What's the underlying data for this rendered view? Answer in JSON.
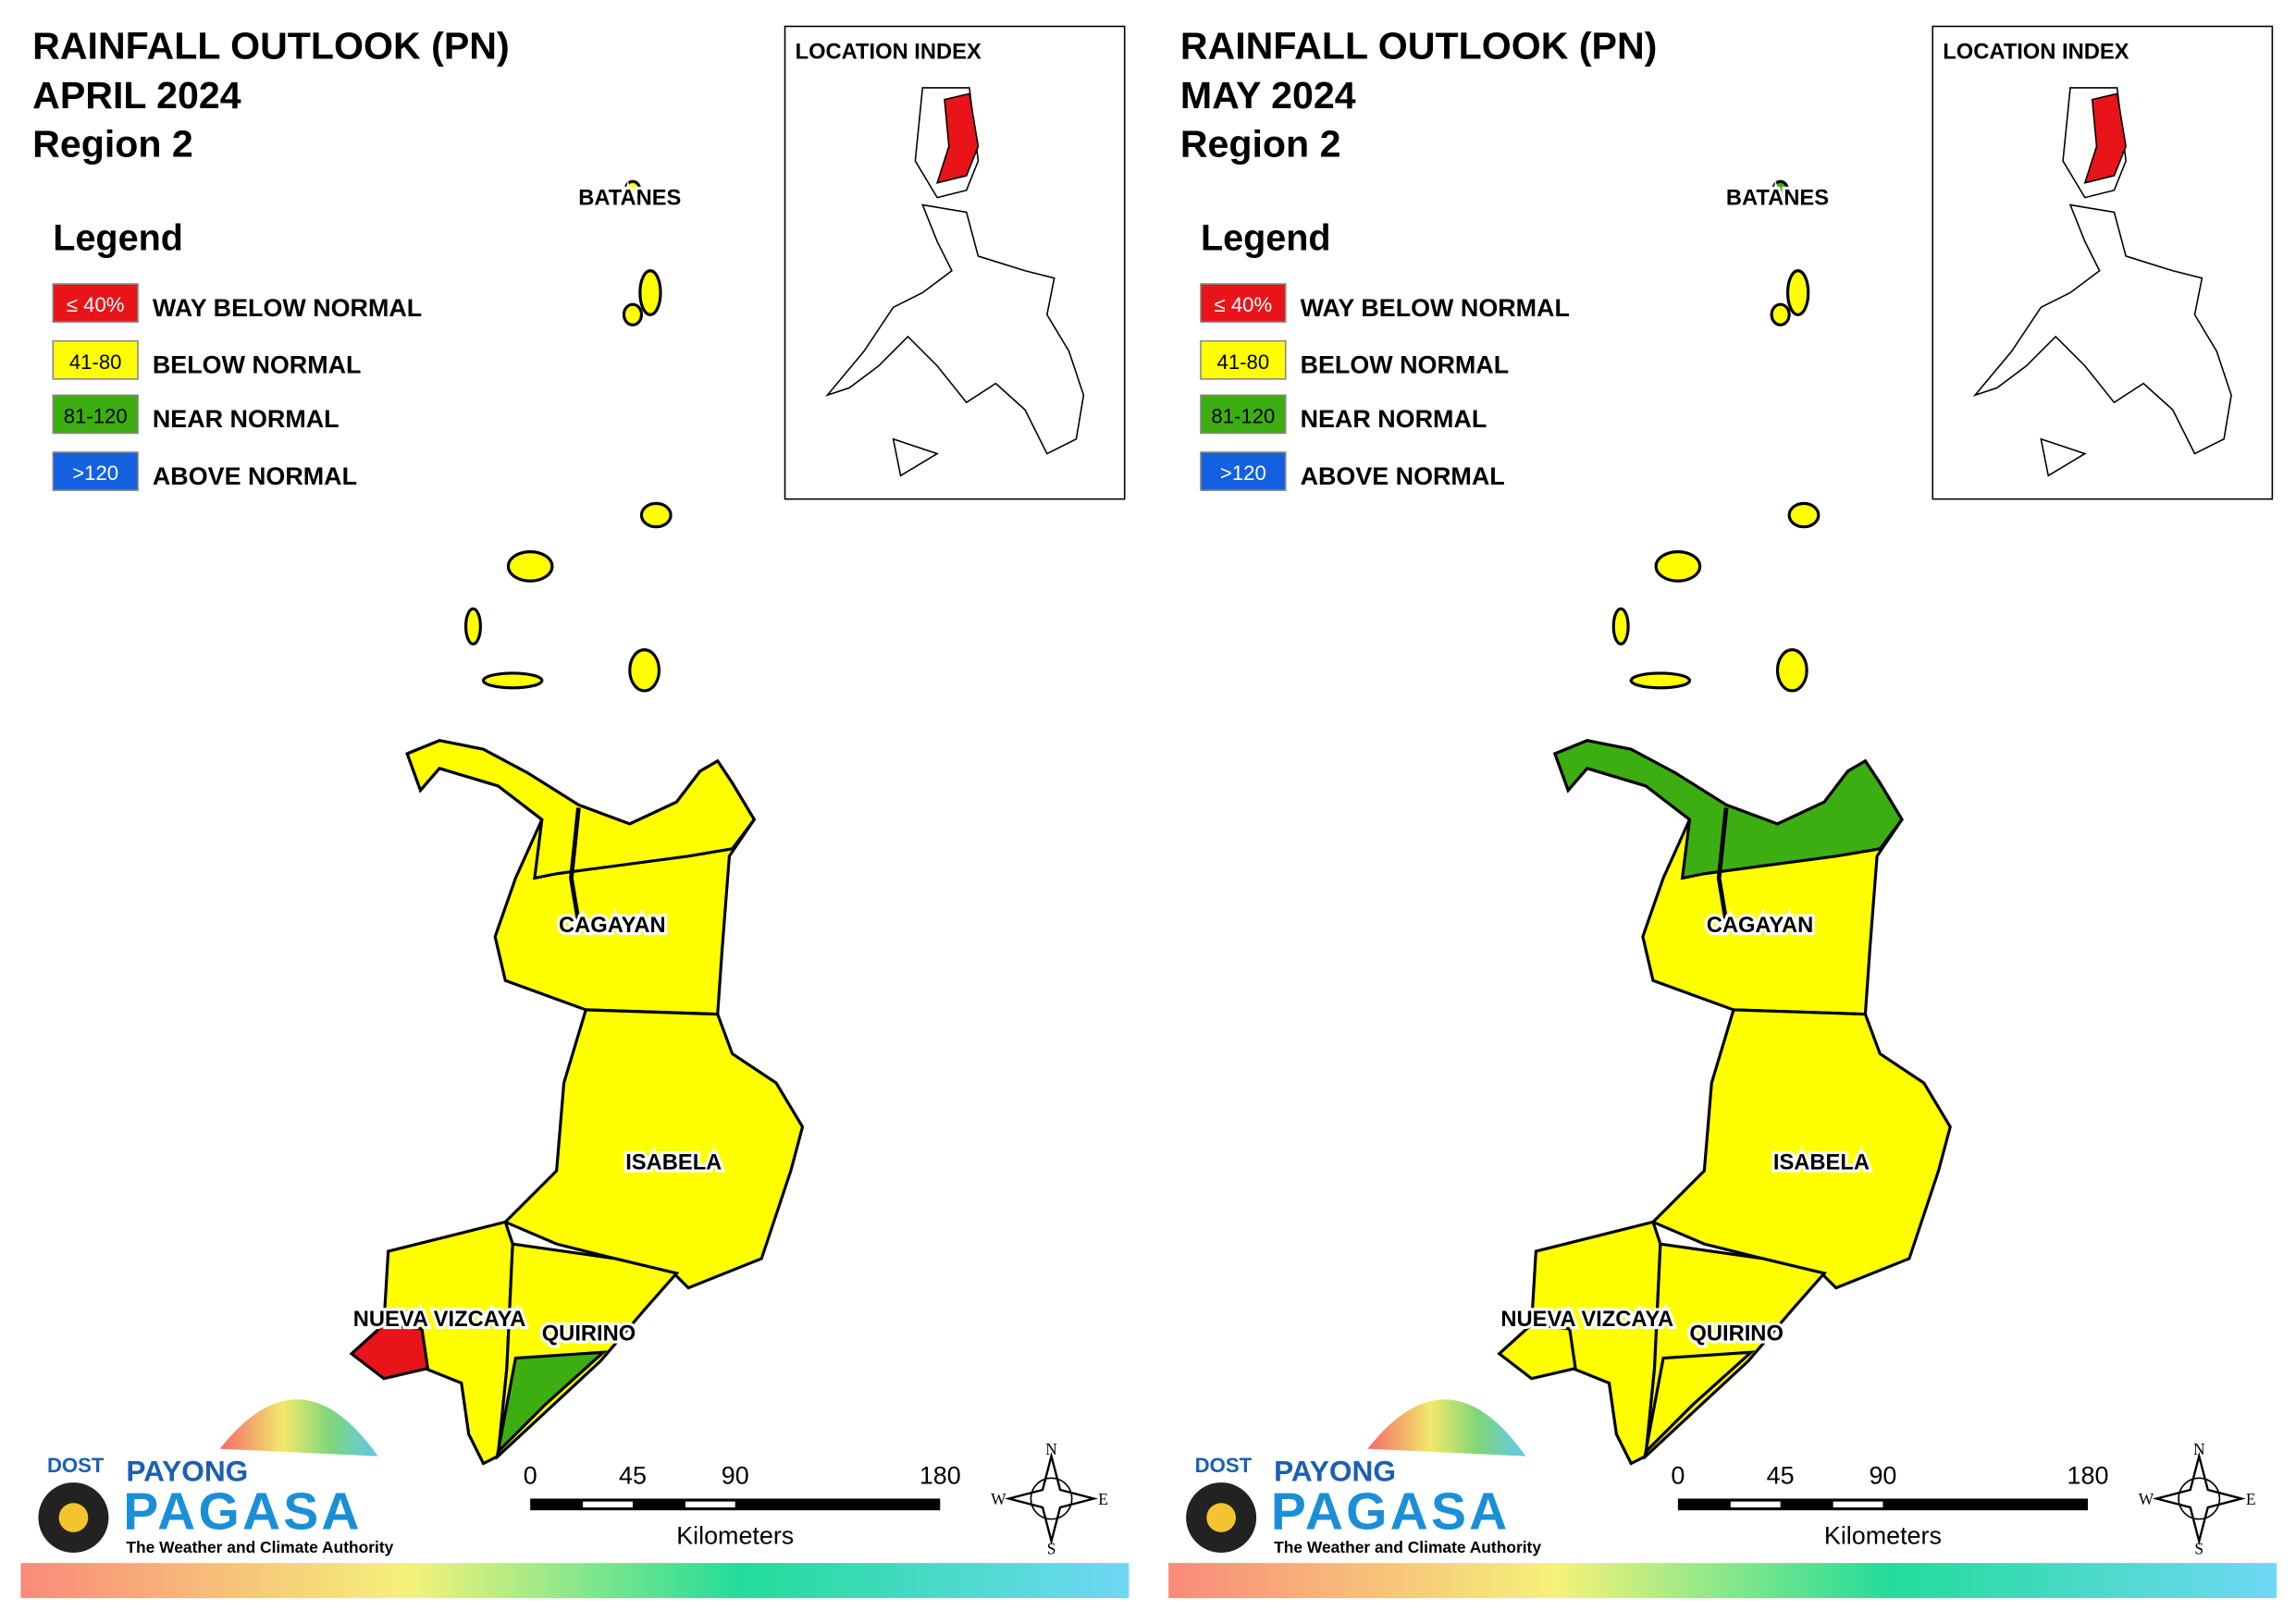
{
  "panels": [
    {
      "title": [
        "RAINFALL OUTLOOK (PN)",
        "APRIL 2024",
        "Region 2"
      ],
      "legend_title": "Legend",
      "legend": [
        {
          "swatch": "≤ 40%",
          "label": "WAY BELOW NORMAL",
          "color": "#e8141a"
        },
        {
          "swatch": "41-80",
          "label": "BELOW NORMAL",
          "color": "#ffff00"
        },
        {
          "swatch": "81-120",
          "label": "NEAR NORMAL",
          "color": "#3dae12"
        },
        {
          "swatch": ">120",
          "label": "ABOVE NORMAL",
          "color": "#1560e0"
        }
      ],
      "location_index": "LOCATION INDEX",
      "provinces": [
        "BATANES",
        "CAGAYAN",
        "ISABELA",
        "NUEVA VIZCAYA",
        "QUIRINO"
      ],
      "scale": {
        "ticks": [
          "0",
          "45",
          "90",
          "180"
        ],
        "unit": "Kilometers"
      },
      "compass": [
        "N",
        "E",
        "S",
        "W"
      ],
      "logo": {
        "dost": "DOST",
        "payong": "PAYONG",
        "pagasa": "PAGASA",
        "tagline": "The Weather and Climate Authority"
      }
    },
    {
      "title": [
        "RAINFALL OUTLOOK (PN)",
        "MAY 2024",
        "Region 2"
      ],
      "legend_title": "Legend",
      "legend": [
        {
          "swatch": "≤ 40%",
          "label": "WAY BELOW NORMAL",
          "color": "#e8141a"
        },
        {
          "swatch": "41-80",
          "label": "BELOW NORMAL",
          "color": "#ffff00"
        },
        {
          "swatch": "81-120",
          "label": "NEAR NORMAL",
          "color": "#3dae12"
        },
        {
          "swatch": ">120",
          "label": "ABOVE NORMAL",
          "color": "#1560e0"
        }
      ],
      "location_index": "LOCATION INDEX",
      "provinces": [
        "BATANES",
        "CAGAYAN",
        "ISABELA",
        "NUEVA VIZCAYA",
        "QUIRINO"
      ],
      "scale": {
        "ticks": [
          "0",
          "45",
          "90",
          "180"
        ],
        "unit": "Kilometers"
      },
      "compass": [
        "N",
        "E",
        "S",
        "W"
      ],
      "logo": {
        "dost": "DOST",
        "payong": "PAYONG",
        "pagasa": "PAGASA",
        "tagline": "The Weather and Climate Authority"
      }
    }
  ]
}
